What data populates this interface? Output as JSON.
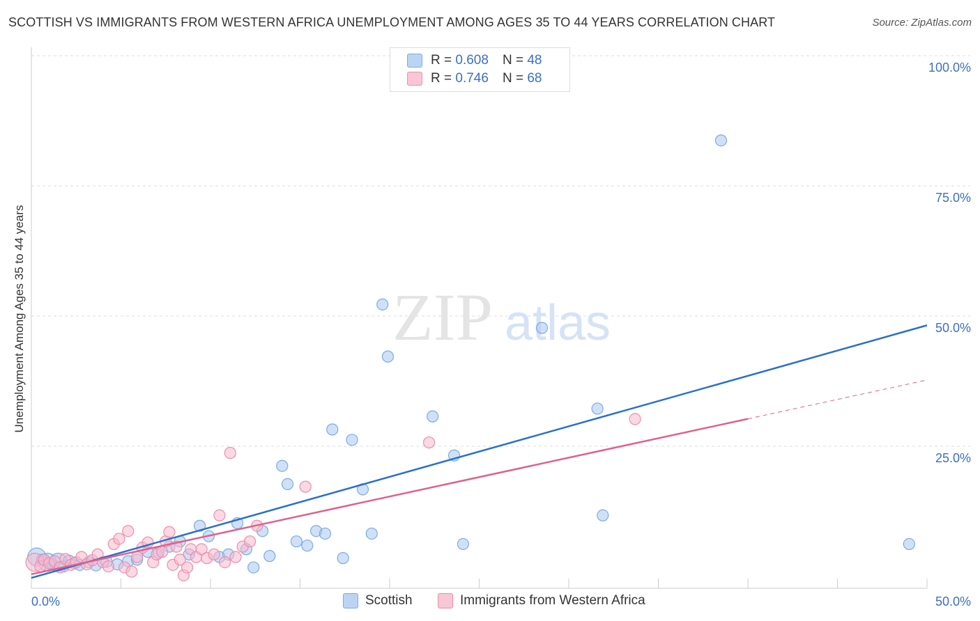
{
  "title": "SCOTTISH VS IMMIGRANTS FROM WESTERN AFRICA UNEMPLOYMENT AMONG AGES 35 TO 44 YEARS CORRELATION CHART",
  "source": "Source: ZipAtlas.com",
  "watermark": {
    "zip": "ZIP",
    "atlas": "atlas"
  },
  "legend": {
    "r_label": "R =",
    "n_label": "N =",
    "series": [
      {
        "r": "0.608",
        "n": "48"
      },
      {
        "r": "0.746",
        "n": "68"
      }
    ]
  },
  "chart_data": {
    "type": "scatter",
    "title": "SCOTTISH VS IMMIGRANTS FROM WESTERN AFRICA UNEMPLOYMENT AMONG AGES 35 TO 44 YEARS CORRELATION CHART",
    "xlabel": "",
    "ylabel": "Unemployment Among Ages 35 to 44 years",
    "xlim": [
      0,
      50
    ],
    "ylim": [
      0,
      100
    ],
    "x_ticks": [
      0,
      5,
      10,
      15,
      20,
      25,
      30,
      35,
      40,
      45,
      50
    ],
    "x_tick_labels": [
      {
        "x": 0,
        "label": "0.0%"
      },
      {
        "x": 50,
        "label": "50.0%"
      }
    ],
    "y_ticks": [
      {
        "y": 25,
        "label": "25.0%"
      },
      {
        "y": 50,
        "label": "50.0%"
      },
      {
        "y": 75,
        "label": "75.0%"
      },
      {
        "y": 100,
        "label": "100.0%"
      }
    ],
    "grid": "horizontal dashed",
    "series": [
      {
        "name": "Scottish",
        "color": "#7aaae8",
        "fill": "#a9c8f0",
        "line_color": "#2970c9",
        "r": 0.608,
        "n": 48,
        "trend": {
          "x0": 0,
          "y0": 2.0,
          "x1": 50,
          "y1": 50.5,
          "dashed_from": null
        },
        "points": [
          {
            "x": 0.3,
            "y": 6.0,
            "s": 2
          },
          {
            "x": 0.6,
            "y": 5.5,
            "s": 1
          },
          {
            "x": 0.9,
            "y": 5.0,
            "s": 2
          },
          {
            "x": 1.2,
            "y": 4.5,
            "s": 1
          },
          {
            "x": 1.5,
            "y": 5.0,
            "s": 2
          },
          {
            "x": 1.8,
            "y": 4.2,
            "s": 1
          },
          {
            "x": 2.1,
            "y": 5.3,
            "s": 1
          },
          {
            "x": 2.4,
            "y": 4.8,
            "s": 1
          },
          {
            "x": 2.7,
            "y": 4.5,
            "s": 1
          },
          {
            "x": 3.2,
            "y": 5.0,
            "s": 1
          },
          {
            "x": 3.6,
            "y": 4.4,
            "s": 1
          },
          {
            "x": 4.2,
            "y": 5.1,
            "s": 1
          },
          {
            "x": 4.8,
            "y": 4.6,
            "s": 1
          },
          {
            "x": 5.4,
            "y": 5.2,
            "s": 1
          },
          {
            "x": 5.9,
            "y": 5.5,
            "s": 1
          },
          {
            "x": 6.5,
            "y": 7.0,
            "s": 1
          },
          {
            "x": 7.1,
            "y": 6.8,
            "s": 1
          },
          {
            "x": 7.7,
            "y": 8.0,
            "s": 1
          },
          {
            "x": 8.3,
            "y": 9.0,
            "s": 1
          },
          {
            "x": 8.8,
            "y": 6.5,
            "s": 1
          },
          {
            "x": 9.4,
            "y": 12.0,
            "s": 1
          },
          {
            "x": 9.9,
            "y": 10.0,
            "s": 1
          },
          {
            "x": 10.5,
            "y": 6.0,
            "s": 1
          },
          {
            "x": 11.0,
            "y": 6.5,
            "s": 1
          },
          {
            "x": 11.5,
            "y": 12.5,
            "s": 1
          },
          {
            "x": 12.0,
            "y": 7.5,
            "s": 1
          },
          {
            "x": 12.4,
            "y": 4.0,
            "s": 1
          },
          {
            "x": 12.9,
            "y": 11.0,
            "s": 1
          },
          {
            "x": 13.3,
            "y": 6.2,
            "s": 1
          },
          {
            "x": 14.0,
            "y": 23.5,
            "s": 1
          },
          {
            "x": 14.3,
            "y": 20.0,
            "s": 1
          },
          {
            "x": 14.8,
            "y": 9.0,
            "s": 1
          },
          {
            "x": 15.4,
            "y": 8.2,
            "s": 1
          },
          {
            "x": 15.9,
            "y": 11.0,
            "s": 1
          },
          {
            "x": 16.4,
            "y": 10.5,
            "s": 1
          },
          {
            "x": 16.8,
            "y": 30.5,
            "s": 1
          },
          {
            "x": 17.4,
            "y": 5.8,
            "s": 1
          },
          {
            "x": 17.9,
            "y": 28.5,
            "s": 1
          },
          {
            "x": 18.5,
            "y": 19.0,
            "s": 1
          },
          {
            "x": 19.0,
            "y": 10.5,
            "s": 1
          },
          {
            "x": 19.6,
            "y": 54.5,
            "s": 1
          },
          {
            "x": 19.9,
            "y": 44.5,
            "s": 1
          },
          {
            "x": 22.4,
            "y": 33.0,
            "s": 1
          },
          {
            "x": 23.6,
            "y": 25.5,
            "s": 1
          },
          {
            "x": 24.1,
            "y": 8.5,
            "s": 1
          },
          {
            "x": 28.5,
            "y": 50.0,
            "s": 1
          },
          {
            "x": 31.6,
            "y": 34.5,
            "s": 1
          },
          {
            "x": 31.9,
            "y": 14.0,
            "s": 1
          },
          {
            "x": 38.5,
            "y": 86.0,
            "s": 1
          },
          {
            "x": 49.0,
            "y": 8.5,
            "s": 1
          }
        ]
      },
      {
        "name": "Immigrants from Western Africa",
        "color": "#f08cab",
        "fill": "#f6b9cc",
        "line_color": "#e0608c",
        "r": 0.746,
        "n": 68,
        "trend": {
          "x0": 0,
          "y0": 2.7,
          "x1": 50,
          "y1": 40.0,
          "solid_until": 40
        },
        "points": [
          {
            "x": 0.2,
            "y": 5.0,
            "s": 2
          },
          {
            "x": 0.5,
            "y": 4.2,
            "s": 1
          },
          {
            "x": 0.7,
            "y": 5.5,
            "s": 1
          },
          {
            "x": 1.0,
            "y": 4.8,
            "s": 1
          },
          {
            "x": 1.3,
            "y": 5.2,
            "s": 1
          },
          {
            "x": 1.6,
            "y": 4.0,
            "s": 1
          },
          {
            "x": 1.9,
            "y": 5.6,
            "s": 1
          },
          {
            "x": 2.2,
            "y": 4.5,
            "s": 1
          },
          {
            "x": 2.5,
            "y": 5.0,
            "s": 1
          },
          {
            "x": 2.8,
            "y": 6.0,
            "s": 1
          },
          {
            "x": 3.1,
            "y": 4.6,
            "s": 1
          },
          {
            "x": 3.4,
            "y": 5.4,
            "s": 1
          },
          {
            "x": 3.7,
            "y": 6.5,
            "s": 1
          },
          {
            "x": 4.0,
            "y": 5.0,
            "s": 1
          },
          {
            "x": 4.3,
            "y": 4.2,
            "s": 1
          },
          {
            "x": 4.6,
            "y": 8.5,
            "s": 1
          },
          {
            "x": 4.9,
            "y": 9.5,
            "s": 1
          },
          {
            "x": 5.2,
            "y": 4.0,
            "s": 1
          },
          {
            "x": 5.4,
            "y": 11.0,
            "s": 1
          },
          {
            "x": 5.6,
            "y": 3.2,
            "s": 1
          },
          {
            "x": 5.9,
            "y": 6.0,
            "s": 1
          },
          {
            "x": 6.2,
            "y": 7.8,
            "s": 1
          },
          {
            "x": 6.5,
            "y": 8.8,
            "s": 1
          },
          {
            "x": 6.8,
            "y": 5.0,
            "s": 1
          },
          {
            "x": 7.0,
            "y": 6.5,
            "s": 1
          },
          {
            "x": 7.3,
            "y": 7.0,
            "s": 1
          },
          {
            "x": 7.5,
            "y": 9.0,
            "s": 1
          },
          {
            "x": 7.7,
            "y": 10.8,
            "s": 1
          },
          {
            "x": 7.9,
            "y": 4.5,
            "s": 1
          },
          {
            "x": 8.1,
            "y": 8.0,
            "s": 1
          },
          {
            "x": 8.3,
            "y": 5.5,
            "s": 1
          },
          {
            "x": 8.5,
            "y": 2.5,
            "s": 1
          },
          {
            "x": 8.7,
            "y": 4.0,
            "s": 1
          },
          {
            "x": 8.9,
            "y": 7.5,
            "s": 1
          },
          {
            "x": 9.2,
            "y": 6.0,
            "s": 1
          },
          {
            "x": 9.5,
            "y": 7.5,
            "s": 1
          },
          {
            "x": 9.8,
            "y": 5.8,
            "s": 1
          },
          {
            "x": 10.2,
            "y": 6.5,
            "s": 1
          },
          {
            "x": 10.5,
            "y": 14.0,
            "s": 1
          },
          {
            "x": 10.8,
            "y": 5.0,
            "s": 1
          },
          {
            "x": 11.1,
            "y": 26.0,
            "s": 1
          },
          {
            "x": 11.4,
            "y": 6.0,
            "s": 1
          },
          {
            "x": 11.8,
            "y": 8.0,
            "s": 1
          },
          {
            "x": 12.2,
            "y": 9.0,
            "s": 1
          },
          {
            "x": 12.6,
            "y": 12.0,
            "s": 1
          },
          {
            "x": 15.3,
            "y": 19.5,
            "s": 1
          },
          {
            "x": 22.2,
            "y": 28.0,
            "s": 1
          },
          {
            "x": 33.7,
            "y": 32.5,
            "s": 1
          }
        ]
      }
    ]
  },
  "bottom_legend": {
    "items": [
      {
        "label": "Scottish"
      },
      {
        "label": "Immigrants from Western Africa"
      }
    ]
  }
}
